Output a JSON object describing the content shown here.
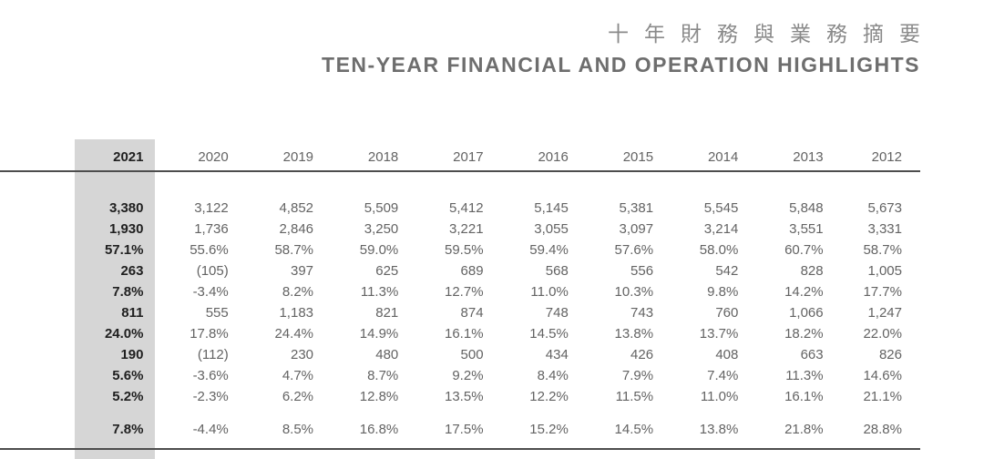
{
  "title": {
    "zh": "十年財務與業務摘要",
    "en": "TEN-YEAR FINANCIAL AND OPERATION HIGHLIGHTS"
  },
  "colors": {
    "highlight_band": "#d6d6d6",
    "rule_line": "#4d4d4d",
    "body_text": "#636363",
    "emphasis_text": "#1f1f1f",
    "title_zh_text": "#8a8a8a",
    "title_en_text": "#6e6e6e"
  },
  "table": {
    "years": [
      "2021",
      "2020",
      "2019",
      "2018",
      "2017",
      "2016",
      "2015",
      "2014",
      "2013",
      "2012"
    ],
    "highlight_year": "2021",
    "rows": [
      {
        "values": [
          "3,380",
          "3,122",
          "4,852",
          "5,509",
          "5,412",
          "5,145",
          "5,381",
          "5,545",
          "5,848",
          "5,673"
        ]
      },
      {
        "values": [
          "1,930",
          "1,736",
          "2,846",
          "3,250",
          "3,221",
          "3,055",
          "3,097",
          "3,214",
          "3,551",
          "3,331"
        ]
      },
      {
        "values": [
          "57.1%",
          "55.6%",
          "58.7%",
          "59.0%",
          "59.5%",
          "59.4%",
          "57.6%",
          "58.0%",
          "60.7%",
          "58.7%"
        ]
      },
      {
        "values": [
          "263",
          "(105)",
          "397",
          "625",
          "689",
          "568",
          "556",
          "542",
          "828",
          "1,005"
        ]
      },
      {
        "values": [
          "7.8%",
          "-3.4%",
          "8.2%",
          "11.3%",
          "12.7%",
          "11.0%",
          "10.3%",
          "9.8%",
          "14.2%",
          "17.7%"
        ]
      },
      {
        "values": [
          "811",
          "555",
          "1,183",
          "821",
          "874",
          "748",
          "743",
          "760",
          "1,066",
          "1,247"
        ]
      },
      {
        "values": [
          "24.0%",
          "17.8%",
          "24.4%",
          "14.9%",
          "16.1%",
          "14.5%",
          "13.8%",
          "13.7%",
          "18.2%",
          "22.0%"
        ]
      },
      {
        "values": [
          "190",
          "(112)",
          "230",
          "480",
          "500",
          "434",
          "426",
          "408",
          "663",
          "826"
        ]
      },
      {
        "values": [
          "5.6%",
          "-3.6%",
          "4.7%",
          "8.7%",
          "9.2%",
          "8.4%",
          "7.9%",
          "7.4%",
          "11.3%",
          "14.6%"
        ]
      },
      {
        "values": [
          "5.2%",
          "-2.3%",
          "6.2%",
          "12.8%",
          "13.5%",
          "12.2%",
          "11.5%",
          "11.0%",
          "16.1%",
          "21.1%"
        ]
      },
      {
        "values": [
          "7.8%",
          "-4.4%",
          "8.5%",
          "16.8%",
          "17.5%",
          "15.2%",
          "14.5%",
          "13.8%",
          "21.8%",
          "28.8%"
        ]
      }
    ],
    "group_break_before_row_index": 10
  }
}
